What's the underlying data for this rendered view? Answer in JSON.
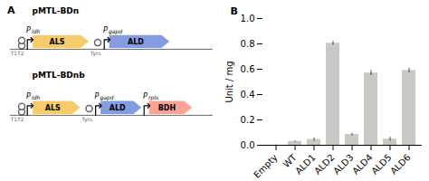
{
  "chart_data": {
    "type": "bar",
    "categories": [
      "Empty",
      "WT",
      "ALD1",
      "ALD2",
      "ALD3",
      "ALD4",
      "ALD5",
      "ALD6"
    ],
    "values": [
      0.0,
      0.03,
      0.045,
      0.805,
      0.085,
      0.57,
      0.048,
      0.59
    ],
    "errors": [
      0.003,
      0.005,
      0.012,
      0.015,
      0.01,
      0.02,
      0.015,
      0.018
    ],
    "color": "#c8c8c4",
    "ylabel": "Unit / mg",
    "ylim": [
      0,
      1.0
    ],
    "yticks": [
      {
        "value": 0,
        "label": "0.0"
      },
      0.2,
      0.4,
      0.6,
      0.8,
      {
        "value": 1,
        "label": "1.0"
      }
    ],
    "grid": false,
    "annotations": [
      "A",
      "pMTL-BDn",
      "pMTL-BDnb",
      "T1T2",
      "Tyrs",
      "ALS",
      "ALD",
      "BDH",
      "P",
      "ldh",
      "gapd",
      "rpls",
      "B"
    ]
  }
}
